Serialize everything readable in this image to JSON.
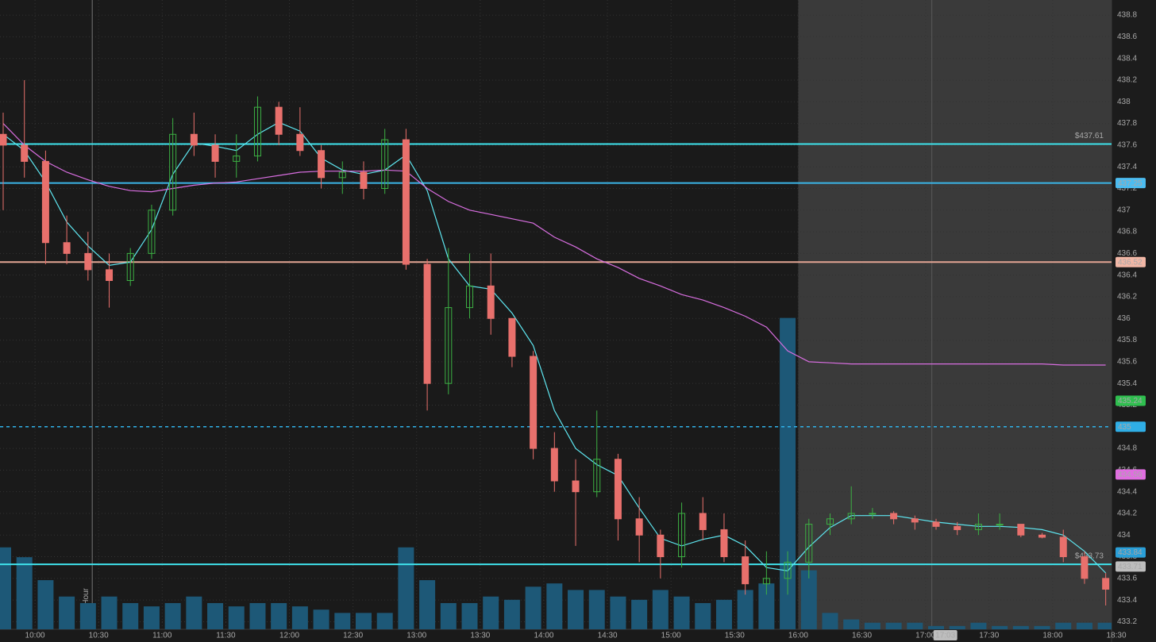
{
  "chart_data": {
    "type": "candlestick",
    "x": [
      585,
      595,
      605,
      615,
      625,
      635,
      645,
      655,
      665,
      675,
      685,
      695,
      705,
      715,
      725,
      735,
      745,
      755,
      765,
      775,
      785,
      795,
      805,
      815,
      825,
      835,
      845,
      855,
      865,
      875,
      885,
      895,
      905,
      915,
      925,
      935,
      945,
      955,
      965,
      975,
      985,
      995,
      1005,
      1015,
      1025,
      1035,
      1045,
      1055,
      1065,
      1075,
      1085,
      1095,
      1105
    ],
    "open": [
      437.7,
      437.6,
      437.45,
      436.7,
      436.6,
      436.45,
      436.35,
      436.6,
      437.0,
      437.7,
      437.6,
      437.45,
      437.5,
      437.95,
      437.7,
      437.55,
      437.3,
      437.35,
      437.2,
      437.65,
      436.5,
      435.4,
      436.1,
      436.3,
      436.0,
      435.65,
      434.8,
      434.5,
      434.4,
      434.7,
      434.15,
      434.0,
      433.8,
      434.2,
      434.05,
      433.8,
      433.55,
      433.6,
      433.75,
      434.1,
      434.15,
      434.2,
      434.2,
      434.15,
      434.12,
      434.08,
      434.05,
      434.1,
      434.1,
      434.0,
      433.98,
      433.8,
      433.6
    ],
    "high": [
      437.9,
      438.2,
      437.55,
      436.95,
      436.8,
      436.6,
      436.65,
      437.05,
      437.85,
      437.9,
      437.7,
      437.7,
      438.05,
      438.0,
      437.95,
      437.6,
      437.45,
      437.45,
      437.75,
      437.75,
      436.55,
      436.65,
      436.6,
      436.6,
      436.0,
      435.7,
      434.95,
      434.7,
      435.15,
      434.75,
      434.35,
      434.05,
      434.3,
      434.35,
      434.2,
      433.95,
      433.85,
      433.85,
      434.15,
      434.2,
      434.45,
      434.25,
      434.22,
      434.18,
      434.15,
      434.12,
      434.2,
      434.2,
      434.1,
      434.02,
      434.05,
      433.85,
      433.65
    ],
    "low": [
      437.0,
      437.3,
      436.5,
      436.5,
      436.35,
      436.1,
      436.3,
      436.55,
      436.95,
      437.5,
      437.3,
      437.3,
      437.45,
      437.6,
      437.5,
      437.2,
      437.15,
      437.1,
      437.15,
      436.45,
      435.15,
      435.3,
      436.0,
      435.85,
      435.55,
      434.7,
      434.4,
      433.9,
      434.35,
      433.95,
      433.75,
      433.6,
      433.7,
      433.95,
      433.75,
      433.45,
      433.45,
      433.45,
      433.6,
      434.0,
      434.1,
      434.15,
      434.1,
      434.05,
      434.05,
      434.0,
      434.0,
      434.05,
      433.98,
      433.97,
      433.75,
      433.55,
      433.35
    ],
    "close": [
      437.6,
      437.45,
      436.7,
      436.6,
      436.45,
      436.35,
      436.6,
      437.0,
      437.7,
      437.6,
      437.45,
      437.5,
      437.95,
      437.7,
      437.55,
      437.3,
      437.35,
      437.2,
      437.65,
      436.5,
      435.4,
      436.1,
      436.3,
      436.0,
      435.65,
      434.8,
      434.5,
      434.4,
      434.7,
      434.15,
      434.0,
      433.8,
      434.2,
      434.05,
      433.8,
      433.55,
      433.6,
      433.75,
      434.1,
      434.15,
      434.2,
      434.2,
      434.15,
      434.12,
      434.08,
      434.05,
      434.1,
      434.1,
      434.0,
      433.98,
      433.8,
      433.6,
      433.5
    ],
    "volume": [
      25,
      22,
      15,
      10,
      8,
      10,
      8,
      7,
      8,
      10,
      8,
      7,
      8,
      8,
      7,
      6,
      5,
      5,
      5,
      25,
      15,
      8,
      8,
      10,
      9,
      13,
      14,
      12,
      12,
      10,
      9,
      12,
      10,
      8,
      9,
      12,
      14,
      95,
      18,
      5,
      3,
      2,
      2,
      2,
      1,
      1,
      2,
      1,
      1,
      1,
      2,
      2,
      2
    ],
    "volume_ylim": [
      0,
      100
    ],
    "up_color": "#3cb043",
    "down_color": "#e8706c",
    "volume_color": "#1d5877",
    "overlays": [
      {
        "color": "#5ee6f0",
        "values": [
          437.7,
          437.55,
          437.26,
          436.89,
          436.67,
          436.49,
          436.52,
          436.82,
          437.33,
          437.62,
          437.59,
          437.55,
          437.7,
          437.81,
          437.73,
          437.48,
          437.37,
          437.33,
          437.37,
          437.51,
          437.18,
          436.55,
          436.3,
          436.27,
          436.05,
          435.75,
          435.15,
          434.8,
          434.65,
          434.55,
          434.25,
          433.97,
          433.9,
          433.96,
          434.0,
          433.9,
          433.7,
          433.67,
          433.89,
          434.07,
          434.18,
          434.18,
          434.18,
          434.15,
          434.12,
          434.1,
          434.08,
          434.08,
          434.07,
          434.05,
          434.0,
          433.85,
          433.65
        ]
      },
      {
        "color": "#d86ee0",
        "values": [
          437.8,
          437.6,
          437.45,
          437.35,
          437.28,
          437.22,
          437.18,
          437.17,
          437.2,
          437.23,
          437.25,
          437.26,
          437.29,
          437.32,
          437.35,
          437.36,
          437.36,
          437.36,
          437.37,
          437.36,
          437.2,
          437.08,
          437.0,
          436.96,
          436.92,
          436.88,
          436.75,
          436.66,
          436.55,
          436.47,
          436.37,
          436.3,
          436.22,
          436.17,
          436.1,
          436.02,
          435.92,
          435.7,
          435.6,
          435.59,
          435.58,
          435.58,
          435.58,
          435.58,
          435.58,
          435.58,
          435.58,
          435.58,
          435.58,
          435.58,
          435.57,
          435.57,
          435.57
        ]
      }
    ],
    "levels": [
      {
        "value": 437.61,
        "color": "#3fe3ec",
        "label": "$437.61"
      },
      {
        "value": 437.25,
        "color": "#3bb4e6"
      },
      {
        "value": 436.52,
        "color": "#e3a594"
      },
      {
        "value": 435,
        "color": "#2fb2ea",
        "dashed": true
      },
      {
        "value": 433.73,
        "color": "#3fe3ec",
        "label": "$433.73"
      }
    ],
    "price_tags": [
      {
        "value": 437.25,
        "color": "#4cbcf0"
      },
      {
        "value": 436.52,
        "color": "#f2b7a6"
      },
      {
        "value": 435.24,
        "color": "#2fbf4f"
      },
      {
        "value": 435,
        "color": "#2faee6"
      },
      {
        "value": 434.56,
        "color": "#e06ee0"
      },
      {
        "value": 433.84,
        "color": "#2a9fd8"
      },
      {
        "value": 433.71,
        "color": "#bdbdbd"
      }
    ],
    "annotations": [
      {
        "x": 627,
        "label": "First Hour"
      }
    ],
    "session_end": 960,
    "cursor": {
      "x": 1023,
      "label": "17:03"
    },
    "grid": true,
    "xlim": [
      583.5,
      1110
    ],
    "ylim": [
      433.13,
      438.94
    ],
    "xticks": [
      {
        "value": 600,
        "label": "10:00"
      },
      {
        "value": 630,
        "label": "10:30"
      },
      {
        "value": 660,
        "label": "11:00"
      },
      {
        "value": 690,
        "label": "11:30"
      },
      {
        "value": 720,
        "label": "12:00"
      },
      {
        "value": 750,
        "label": "12:30"
      },
      {
        "value": 780,
        "label": "13:00"
      },
      {
        "value": 810,
        "label": "13:30"
      },
      {
        "value": 840,
        "label": "14:00"
      },
      {
        "value": 870,
        "label": "14:30"
      },
      {
        "value": 900,
        "label": "15:00"
      },
      {
        "value": 930,
        "label": "15:30"
      },
      {
        "value": 960,
        "label": "16:00"
      },
      {
        "value": 990,
        "label": "16:30"
      },
      {
        "value": 1020,
        "label": "17:00"
      },
      {
        "value": 1050,
        "label": "17:30"
      },
      {
        "value": 1080,
        "label": "18:00"
      },
      {
        "value": 1110,
        "label": "18:30"
      }
    ],
    "yticks": [
      433.2,
      433.4,
      433.6,
      433.8,
      434,
      434.2,
      434.4,
      434.6,
      434.8,
      435,
      435.2,
      435.4,
      435.6,
      435.8,
      436,
      436.2,
      436.4,
      436.6,
      436.8,
      437,
      437.2,
      437.4,
      437.6,
      437.8,
      438,
      438.2,
      438.4,
      438.6,
      438.8
    ]
  }
}
